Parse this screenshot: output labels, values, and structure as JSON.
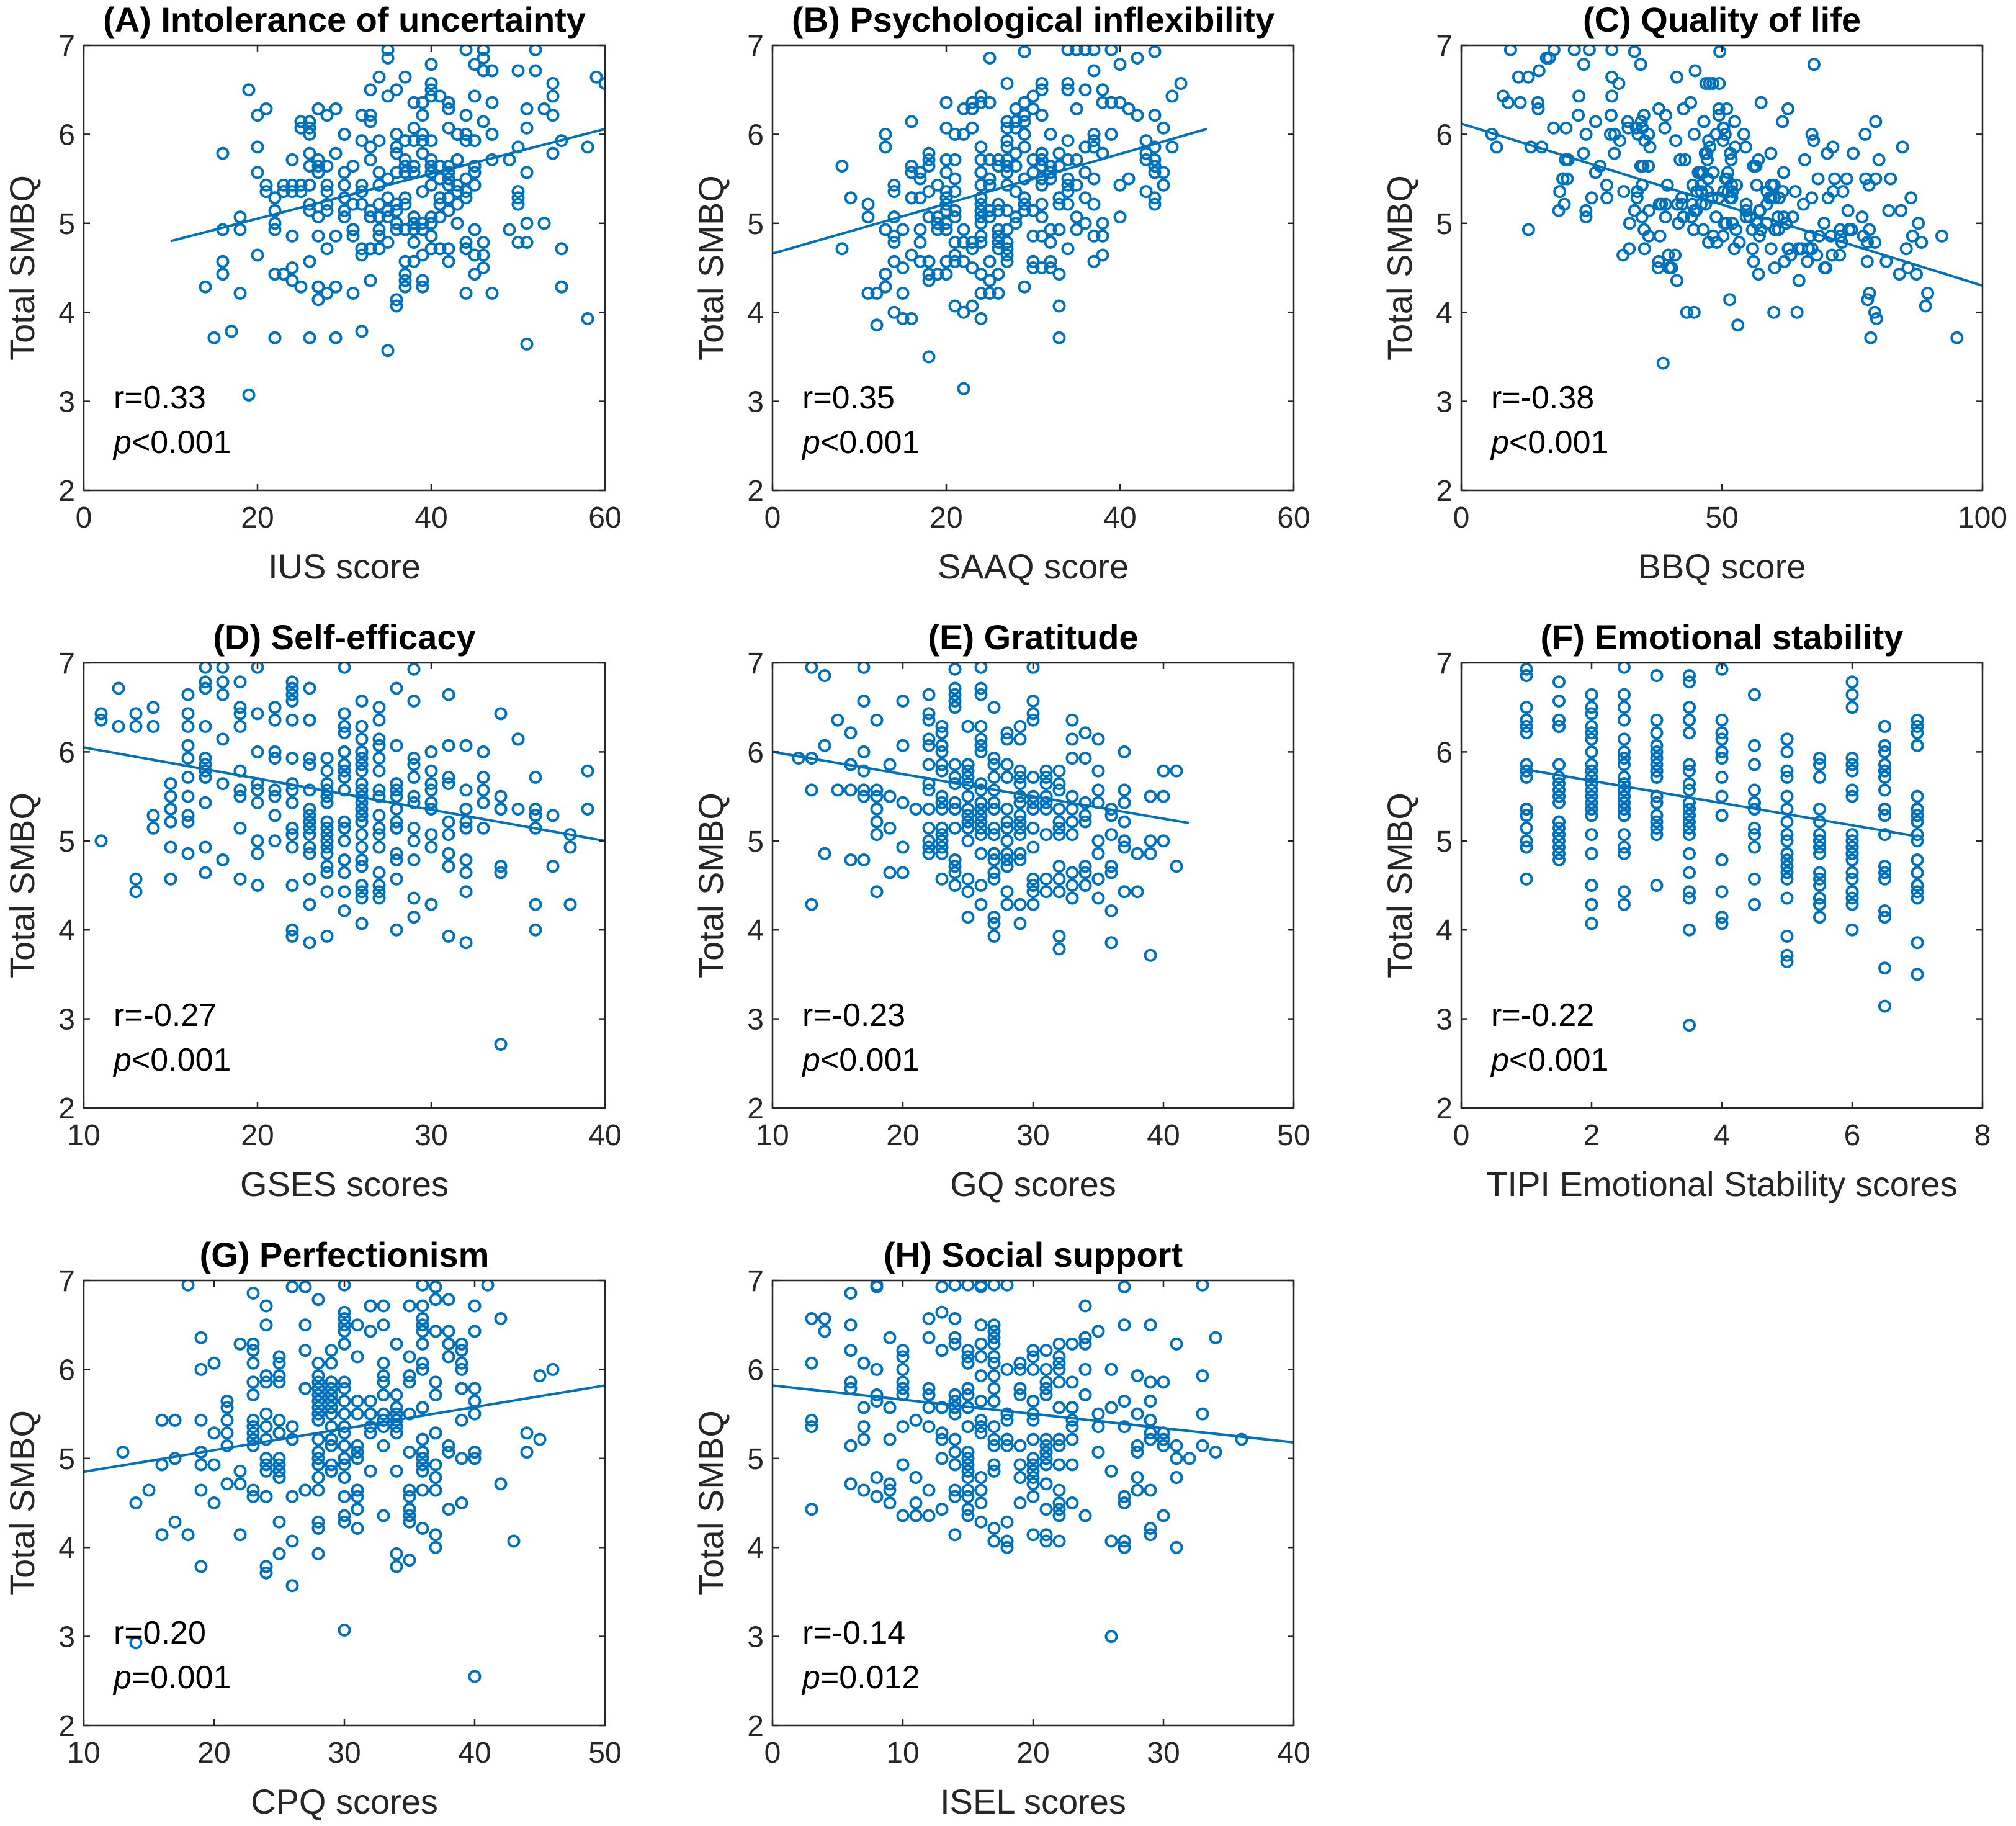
{
  "chart_data": [
    {
      "id": "A",
      "type": "scatter",
      "title": "(A) Intolerance of uncertainty",
      "xlabel": "IUS score",
      "ylabel": "Total SMBQ",
      "xlim": [
        0,
        60
      ],
      "ylim": [
        2,
        7
      ],
      "xticks": [
        "0",
        "20",
        "40",
        "60"
      ],
      "yticks": [
        "2",
        "3",
        "4",
        "5",
        "6",
        "7"
      ],
      "r_text": "r=0.33",
      "p_label": "p",
      "p_value": "<0.001",
      "fit": {
        "x": [
          10,
          60
        ],
        "y": [
          4.8,
          6.06
        ]
      },
      "n_points": 300,
      "x_range": [
        13,
        60
      ],
      "y_center": 5.4,
      "y_spread": 0.7,
      "slope": 0.025,
      "x_integer": true
    },
    {
      "id": "B",
      "type": "scatter",
      "title": "(B) Psychological inflexibility",
      "xlabel": "SAAQ score",
      "ylabel": "Total SMBQ",
      "xlim": [
        0,
        60
      ],
      "ylim": [
        2,
        7
      ],
      "xticks": [
        "0",
        "20",
        "40",
        "60"
      ],
      "yticks": [
        "2",
        "3",
        "4",
        "5",
        "6",
        "7"
      ],
      "r_text": "r=0.35",
      "p_label": "p",
      "p_value": "<0.001",
      "fit": {
        "x": [
          0,
          50
        ],
        "y": [
          4.66,
          6.06
        ]
      },
      "n_points": 300,
      "x_range": [
        7,
        48
      ],
      "y_center": 5.4,
      "y_spread": 0.7,
      "slope": 0.028,
      "x_integer": true
    },
    {
      "id": "C",
      "type": "scatter",
      "title": "(C) Quality of life",
      "xlabel": "BBQ score",
      "ylabel": "Total SMBQ",
      "xlim": [
        0,
        100
      ],
      "ylim": [
        2,
        7
      ],
      "xticks": [
        "0",
        "50",
        "100"
      ],
      "yticks": [
        "2",
        "3",
        "4",
        "5",
        "6",
        "7"
      ],
      "r_text": "r=-0.38",
      "p_label": "p",
      "p_value": "<0.001",
      "fit": {
        "x": [
          0,
          100
        ],
        "y": [
          6.12,
          4.3
        ]
      },
      "n_points": 300,
      "x_range": [
        0,
        97
      ],
      "y_center": 5.4,
      "y_spread": 0.65,
      "slope": -0.018,
      "x_integer": false
    },
    {
      "id": "D",
      "type": "scatter",
      "title": "(D) Self-efficacy",
      "xlabel": "GSES scores",
      "ylabel": "Total SMBQ",
      "xlim": [
        10,
        40
      ],
      "ylim": [
        2,
        7
      ],
      "xticks": [
        "10",
        "20",
        "30",
        "40"
      ],
      "yticks": [
        "2",
        "3",
        "4",
        "5",
        "6",
        "7"
      ],
      "r_text": "r=-0.27",
      "p_label": "p",
      "p_value": "<0.001",
      "fit": {
        "x": [
          10,
          40
        ],
        "y": [
          6.05,
          5.0
        ]
      },
      "n_points": 300,
      "x_range": [
        10,
        40
      ],
      "y_center": 5.4,
      "y_spread": 0.7,
      "slope": -0.035,
      "x_integer": true
    },
    {
      "id": "E",
      "type": "scatter",
      "title": "(E) Gratitude",
      "xlabel": "GQ scores",
      "ylabel": "Total SMBQ",
      "xlim": [
        10,
        50
      ],
      "ylim": [
        2,
        7
      ],
      "xticks": [
        "10",
        "20",
        "30",
        "40",
        "50"
      ],
      "yticks": [
        "2",
        "3",
        "4",
        "5",
        "6",
        "7"
      ],
      "r_text": "r=-0.23",
      "p_label": "p",
      "p_value": "<0.001",
      "fit": {
        "x": [
          10,
          42
        ],
        "y": [
          6.0,
          5.2
        ]
      },
      "n_points": 300,
      "x_range": [
        12,
        42
      ],
      "y_center": 5.4,
      "y_spread": 0.7,
      "slope": -0.025,
      "x_integer": true
    },
    {
      "id": "F",
      "type": "scatter",
      "title": "(F) Emotional stability",
      "xlabel": "TIPI Emotional Stability scores",
      "ylabel": "Total SMBQ",
      "xlim": [
        0,
        8
      ],
      "ylim": [
        2,
        7
      ],
      "xticks": [
        "0",
        "2",
        "4",
        "6",
        "8"
      ],
      "yticks": [
        "2",
        "3",
        "4",
        "5",
        "6",
        "7"
      ],
      "r_text": "r=-0.22",
      "p_label": "p",
      "p_value": "<0.001",
      "fit": {
        "x": [
          1,
          7
        ],
        "y": [
          5.8,
          5.05
        ]
      },
      "n_points": 300,
      "x_range": [
        1,
        7
      ],
      "y_center": 5.4,
      "y_spread": 0.7,
      "slope": -0.12,
      "x_step": 0.5
    },
    {
      "id": "G",
      "type": "scatter",
      "title": "(G) Perfectionism",
      "xlabel": "CPQ scores",
      "ylabel": "Total SMBQ",
      "xlim": [
        10,
        50
      ],
      "ylim": [
        2,
        7
      ],
      "xticks": [
        "10",
        "20",
        "30",
        "40",
        "50"
      ],
      "yticks": [
        "2",
        "3",
        "4",
        "5",
        "6",
        "7"
      ],
      "r_text": "r=0.20",
      "p_label": "p",
      "p_value": "=0.001",
      "fit": {
        "x": [
          10,
          50
        ],
        "y": [
          4.85,
          5.82
        ]
      },
      "n_points": 300,
      "x_range": [
        13,
        46
      ],
      "y_center": 5.4,
      "y_spread": 0.75,
      "slope": 0.024,
      "x_integer": true
    },
    {
      "id": "H",
      "type": "scatter",
      "title": "(H) Social support",
      "xlabel": "ISEL scores",
      "ylabel": "Total SMBQ",
      "xlim": [
        0,
        40
      ],
      "ylim": [
        2,
        7
      ],
      "xticks": [
        "0",
        "10",
        "20",
        "30",
        "40"
      ],
      "yticks": [
        "2",
        "3",
        "4",
        "5",
        "6",
        "7"
      ],
      "r_text": "r=-0.14",
      "p_label": "p",
      "p_value": "=0.012",
      "fit": {
        "x": [
          0,
          40
        ],
        "y": [
          5.82,
          5.18
        ]
      },
      "n_points": 300,
      "x_range": [
        0,
        36
      ],
      "y_center": 5.4,
      "y_spread": 0.75,
      "slope": -0.016,
      "x_integer": true
    }
  ]
}
